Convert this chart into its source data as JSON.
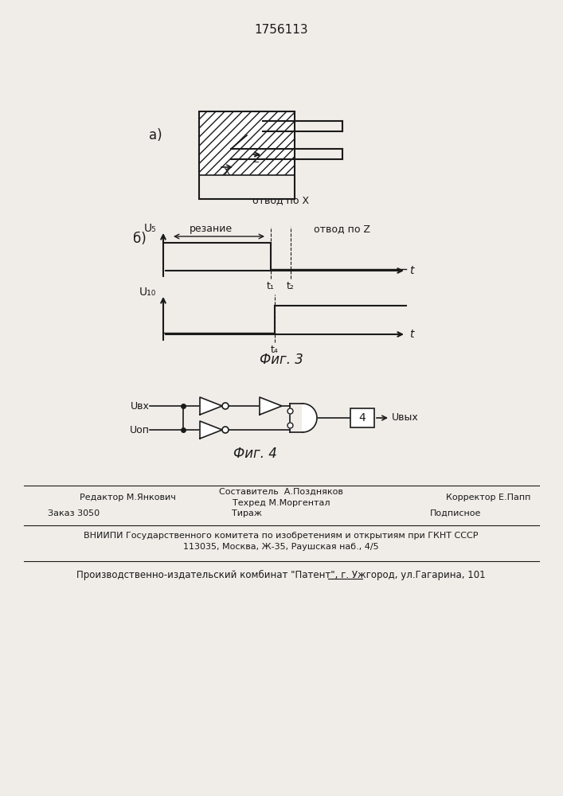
{
  "title": "1756113",
  "fig3_caption": "Фиг. 3",
  "fig4_caption": "Фиг. 4",
  "label_a": "а)",
  "label_b": "б)",
  "u5_label": "U₅",
  "u10_label": "U₁₀",
  "rezanie_label": "резание",
  "otvod_x_label": "отвод по X",
  "otvod_z_label": "отвод по Z",
  "t_label": "t",
  "t1_label": "t₁",
  "t2_label": "t₂",
  "t4_label": "t₄",
  "uvx_label": "Uвх",
  "uop_label": "Uоп",
  "uvyx_label": "Uвых",
  "editor_line": "Редактор М.Янкович",
  "sostavitel_line1": "Составитель  А.Поздняков",
  "sostavitel_line2": "Техред М.Моргентал",
  "korrektor_line": "Корректор Е.Папп",
  "zakaz_line": "Заказ 3050",
  "tirazh_line": "Тираж",
  "podpisnoe_line": "Подписное",
  "vniipie_line": "ВНИИПИ Государственного комитета по изобретениям и открытиям при ГКНТ СССР",
  "address_line": "113035, Москва, Ж-35, Раушская наб., 4/5",
  "kombinat_line": "Производственно-издательский комбинат \"Патент\", г. Ужгород, ул.Гагарина, 101",
  "bg_color": "#f0ede8",
  "line_color": "#1a1a1a"
}
